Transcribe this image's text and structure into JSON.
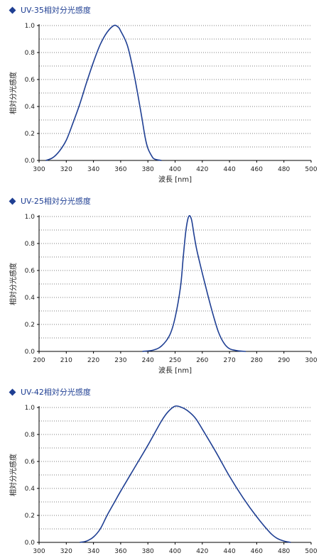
{
  "chart_data": [
    {
      "type": "line",
      "title": "UV-35相対分光感度",
      "xlabel": "波長 [nm]",
      "ylabel": "相対分光感度",
      "xlim": [
        300,
        500
      ],
      "ylim": [
        0,
        1
      ],
      "x_ticks": [
        "300",
        "320",
        "340",
        "360",
        "380",
        "400",
        "420",
        "440",
        "460",
        "480",
        "500"
      ],
      "y_ticks": [
        "0.0",
        "0.2",
        "0.4",
        "0.6",
        "0.8",
        "1.0"
      ],
      "grid": "horizontal dotted",
      "color": "#1f3f93",
      "series": [
        {
          "x": [
            305,
            310,
            315,
            320,
            325,
            330,
            335,
            340,
            345,
            350,
            355,
            358,
            360,
            365,
            370,
            375,
            378,
            380,
            383,
            385,
            390
          ],
          "values": [
            0.0,
            0.02,
            0.07,
            0.15,
            0.28,
            0.42,
            0.58,
            0.73,
            0.86,
            0.95,
            1.0,
            0.99,
            0.96,
            0.85,
            0.63,
            0.35,
            0.17,
            0.09,
            0.03,
            0.01,
            0.0
          ]
        }
      ]
    },
    {
      "type": "line",
      "title": "UV-25相対分光感度",
      "xlabel": "波長 [nm]",
      "ylabel": "相対分光感度",
      "xlim": [
        200,
        300
      ],
      "ylim": [
        0,
        1
      ],
      "x_ticks": [
        "200",
        "210",
        "220",
        "230",
        "240",
        "250",
        "260",
        "270",
        "280",
        "290",
        "300"
      ],
      "y_ticks": [
        "0.0",
        "0.2",
        "0.4",
        "0.6",
        "0.8",
        "1.0"
      ],
      "grid": "horizontal dotted",
      "color": "#1f3f93",
      "series": [
        {
          "x": [
            238,
            242,
            245,
            248,
            250,
            252,
            253,
            254,
            255,
            256,
            257,
            258,
            260,
            262,
            264,
            266,
            268,
            270,
            273,
            276
          ],
          "values": [
            0.0,
            0.01,
            0.04,
            0.12,
            0.25,
            0.48,
            0.7,
            0.9,
            1.0,
            0.98,
            0.86,
            0.75,
            0.58,
            0.42,
            0.27,
            0.14,
            0.06,
            0.02,
            0.005,
            0.0
          ]
        }
      ]
    },
    {
      "type": "line",
      "title": "UV-42相対分光感度",
      "xlabel": "",
      "ylabel": "相対分光感度",
      "xlim": [
        300,
        500
      ],
      "ylim": [
        0,
        1
      ],
      "x_ticks": [
        "300",
        "320",
        "340",
        "360",
        "380",
        "400",
        "420",
        "440",
        "460",
        "480",
        "500"
      ],
      "y_ticks": [
        "0.0",
        "0.2",
        "0.4",
        "0.6",
        "0.8",
        "1.0"
      ],
      "grid": "horizontal dotted",
      "color": "#1f3f93",
      "series": [
        {
          "x": [
            330,
            335,
            340,
            345,
            350,
            355,
            360,
            370,
            380,
            390,
            395,
            400,
            405,
            410,
            415,
            420,
            430,
            440,
            450,
            460,
            470,
            475,
            480,
            485
          ],
          "values": [
            0.0,
            0.01,
            0.04,
            0.1,
            0.2,
            0.29,
            0.38,
            0.55,
            0.72,
            0.9,
            0.97,
            1.01,
            1.0,
            0.97,
            0.92,
            0.84,
            0.67,
            0.49,
            0.33,
            0.19,
            0.07,
            0.03,
            0.01,
            0.0
          ]
        }
      ]
    }
  ]
}
